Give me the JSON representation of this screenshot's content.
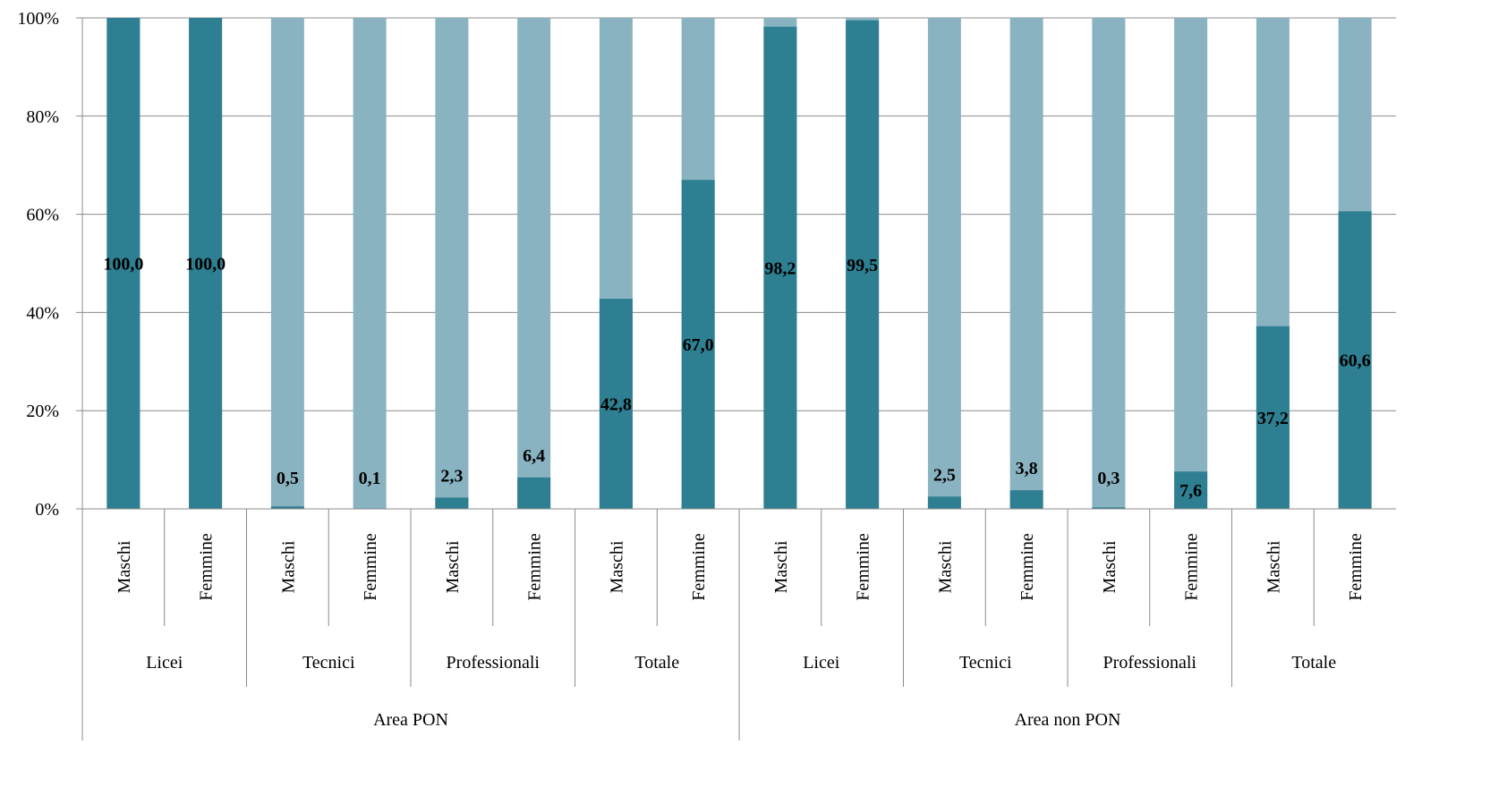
{
  "chart_data": {
    "type": "bar",
    "stacked": "percent",
    "ylim": [
      0,
      100
    ],
    "y_ticks": [
      "0%",
      "20%",
      "40%",
      "60%",
      "80%",
      "100%"
    ],
    "grid": true,
    "legend": "none",
    "colors": {
      "dark": "#2e7f91",
      "light": "#8ab3c2"
    },
    "groups": [
      {
        "label": "Area PON",
        "subgroups": [
          {
            "label": "Licei",
            "categories": [
              "Maschi",
              "Femmine"
            ]
          },
          {
            "label": "Tecnici",
            "categories": [
              "Maschi",
              "Femmine"
            ]
          },
          {
            "label": "Professionali",
            "categories": [
              "Maschi",
              "Femmine"
            ]
          },
          {
            "label": "Totale",
            "categories": [
              "Maschi",
              "Femmine"
            ]
          }
        ]
      },
      {
        "label": "Area non PON",
        "subgroups": [
          {
            "label": "Licei",
            "categories": [
              "Maschi",
              "Femmine"
            ]
          },
          {
            "label": "Tecnici",
            "categories": [
              "Maschi",
              "Femmine"
            ]
          },
          {
            "label": "Professionali",
            "categories": [
              "Maschi",
              "Femmine"
            ]
          },
          {
            "label": "Totale",
            "categories": [
              "Maschi",
              "Femmine"
            ]
          }
        ]
      }
    ],
    "values": [
      100.0,
      100.0,
      0.5,
      0.1,
      2.3,
      6.4,
      42.8,
      67.0,
      98.2,
      99.5,
      2.5,
      3.8,
      0.3,
      7.6,
      37.2,
      60.6
    ],
    "data_labels": [
      "100,0",
      "100,0",
      "0,5",
      "0,1",
      "2,3",
      "6,4",
      "42,8",
      "67,0",
      "98,2",
      "99,5",
      "2,5",
      "3,8",
      "0,3",
      "7,6",
      "37,2",
      "60,6"
    ]
  }
}
